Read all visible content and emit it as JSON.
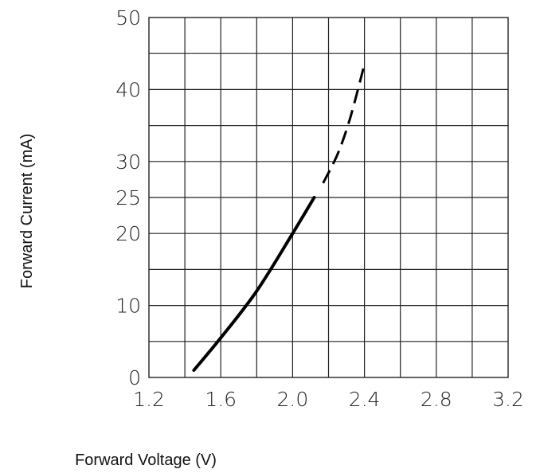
{
  "chart_data": {
    "type": "line",
    "title": "",
    "xlabel": "Forward Voltage (V)",
    "ylabel": "Forward Current (mA)",
    "xlim": [
      1.2,
      3.2
    ],
    "ylim": [
      0,
      50
    ],
    "x_ticks": [
      1.2,
      1.6,
      2.0,
      2.4,
      2.8,
      3.2
    ],
    "x_tick_labels": [
      "1.2",
      "1.6",
      "2.0",
      "2.4",
      "2.8",
      "3.2"
    ],
    "y_ticks": [
      0,
      10,
      20,
      25,
      30,
      40,
      50
    ],
    "y_tick_labels": [
      "0",
      "10",
      "20",
      "25",
      "30",
      "40",
      "50"
    ],
    "grid": true,
    "grid_x_step": 0.2,
    "grid_y_step": 5,
    "series": [
      {
        "style": "solid",
        "x": [
          1.45,
          1.6,
          1.8,
          2.0,
          2.12
        ],
        "y": [
          1,
          5.5,
          12,
          20,
          25
        ]
      },
      {
        "style": "dashed",
        "x": [
          2.17,
          2.25,
          2.32,
          2.4
        ],
        "y": [
          27,
          31,
          36,
          43.5
        ]
      }
    ]
  }
}
